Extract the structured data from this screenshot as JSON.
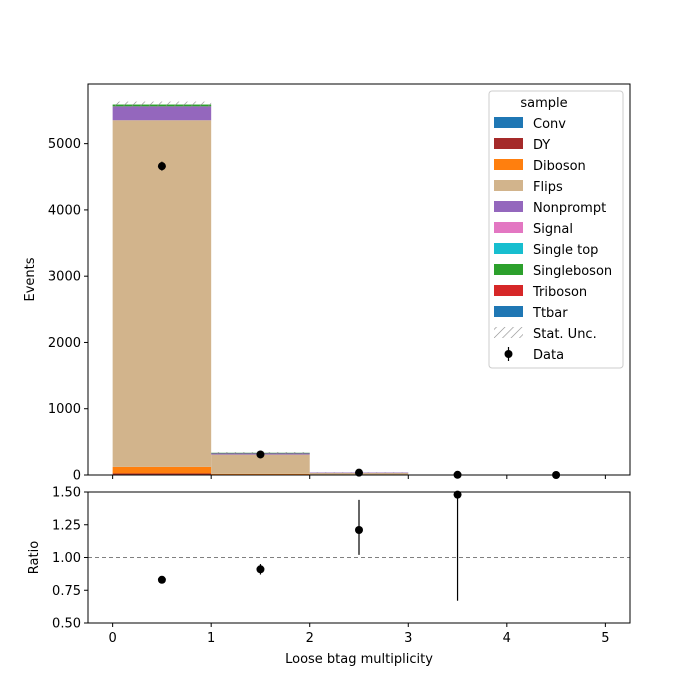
{
  "chart_data": {
    "type": "bar",
    "stacked": true,
    "main": {
      "xlabel": "Loose btag multiplicity",
      "ylabel": "Events",
      "xlim": [
        -0.25,
        5.25
      ],
      "ylim": [
        0,
        5900
      ],
      "x_ticks": [
        "0",
        "1",
        "2",
        "3",
        "4",
        "5"
      ],
      "y_ticks": [
        "0",
        "1000",
        "2000",
        "3000",
        "4000",
        "5000"
      ],
      "bin_edges": [
        0,
        1,
        2,
        3,
        4,
        5
      ],
      "series": [
        {
          "name": "Conv",
          "color": "#1f77b4",
          "values": [
            8,
            3,
            1,
            0,
            0
          ]
        },
        {
          "name": "DY",
          "color": "#a52a2a",
          "values": [
            15,
            5,
            2,
            0,
            0
          ]
        },
        {
          "name": "Diboson",
          "color": "#ff7f0e",
          "values": [
            100,
            10,
            4,
            1,
            0
          ]
        },
        {
          "name": "Flips",
          "color": "#d2b48c",
          "values": [
            5230,
            290,
            25,
            2,
            0
          ]
        },
        {
          "name": "Nonprompt",
          "color": "#9467bd",
          "values": [
            210,
            25,
            5,
            1,
            0
          ]
        },
        {
          "name": "Signal",
          "color": "#e377c2",
          "values": [
            0,
            0,
            0,
            0,
            0
          ]
        },
        {
          "name": "Single top",
          "color": "#17becf",
          "values": [
            0,
            0,
            0,
            0,
            0
          ]
        },
        {
          "name": "Singleboson",
          "color": "#2ca02c",
          "values": [
            27,
            2,
            0,
            0,
            0
          ]
        },
        {
          "name": "Triboson",
          "color": "#d62728",
          "values": [
            0,
            0,
            0,
            0,
            0
          ]
        },
        {
          "name": "Ttbar",
          "color": "#1f77b4",
          "values": [
            0,
            0,
            0,
            0,
            0
          ]
        }
      ],
      "data": {
        "name": "Data",
        "x": [
          0.5,
          1.5,
          2.5,
          3.5,
          4.5
        ],
        "y": [
          4660,
          310,
          35,
          3,
          0
        ],
        "yerr": [
          68,
          18,
          6,
          2,
          0
        ]
      },
      "legend": {
        "title": "sample",
        "placement": "top-right",
        "entries": [
          "Conv",
          "DY",
          "Diboson",
          "Flips",
          "Nonprompt",
          "Signal",
          "Single top",
          "Singleboson",
          "Triboson",
          "Ttbar",
          "Stat. Unc.",
          "Data"
        ]
      }
    },
    "ratio": {
      "ylabel": "Ratio",
      "ylim": [
        0.5,
        1.5
      ],
      "y_ticks": [
        "0.50",
        "0.75",
        "1.00",
        "1.25",
        "1.50"
      ],
      "reference": 1.0,
      "x": [
        0.5,
        1.5,
        2.5,
        3.5
      ],
      "y": [
        0.83,
        0.91,
        1.21,
        1.48
      ],
      "yerr_low": [
        0.012,
        0.04,
        0.19,
        0.81
      ],
      "yerr_high": [
        0.012,
        0.04,
        0.23,
        0.02
      ]
    }
  }
}
